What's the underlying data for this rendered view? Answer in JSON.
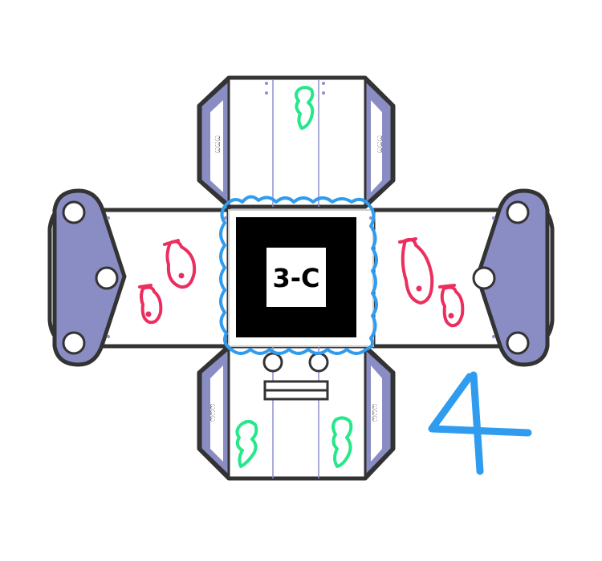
{
  "marker": {
    "label": "3-C"
  },
  "flap_labels": {
    "top_left": "ෆෆෆ",
    "top_right": "ෆෆෆ",
    "bottom_left": "ෆෆෆ",
    "bottom_right": "ෆෆෆ"
  },
  "page_number": "4",
  "colors": {
    "outline": "#333333",
    "paper": "#ffffff",
    "purple": "#8a8cc4",
    "fold_line": "#8f8fd0",
    "blue": "#2f9cf0",
    "fish": "#ec2e5f",
    "seaweed": "#26e88a",
    "marker_black": "#000000"
  },
  "icons": [
    "fish-icon",
    "seaweed-icon",
    "hole-icon",
    "slot-icon"
  ]
}
